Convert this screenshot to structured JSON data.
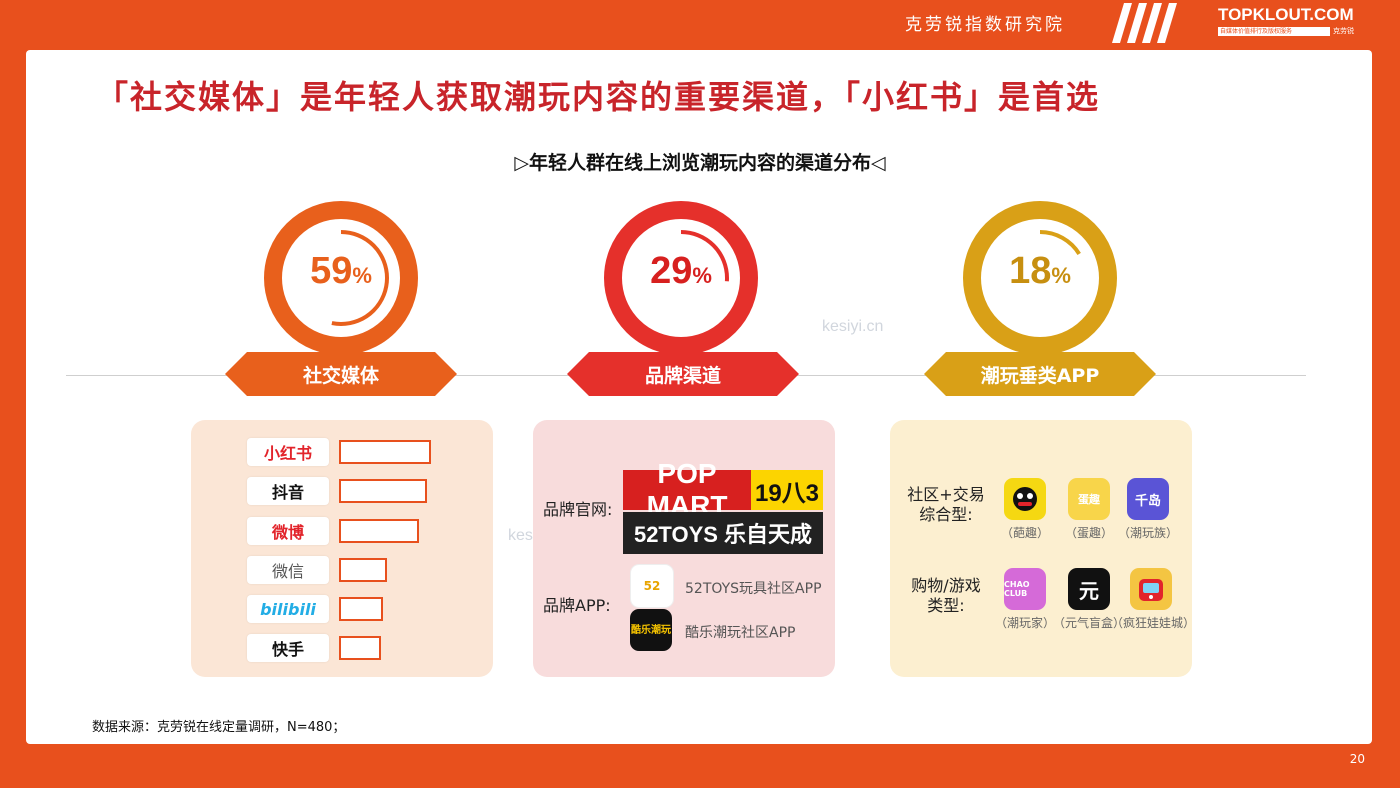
{
  "header": {
    "institute": "克劳锐指数研究院",
    "brand": "TOPKLOUT.COM",
    "brand_tagline": "自媒体价值排行及版权服务",
    "brand_cn": "克劳锐"
  },
  "headline": "「社交媒体」是年轻人获取潮玩内容的重要渠道，「小红书」是首选",
  "subtitle": "▷年轻人群在线上浏览潮玩内容的渠道分布◁",
  "channels": [
    {
      "value": "59",
      "unit": "%",
      "label": "社交媒体",
      "color": "#e8601c",
      "fraction": 0.59
    },
    {
      "value": "29",
      "unit": "%",
      "label": "品牌渠道",
      "color": "#e5302b",
      "fraction": 0.29
    },
    {
      "value": "18",
      "unit": "%",
      "label": "潮玩垂类APP",
      "color": "#d9a017",
      "fraction": 0.18
    }
  ],
  "social_platforms": [
    {
      "name": "小红书",
      "color": "#e2242b",
      "relative": 1.0
    },
    {
      "name": "抖音",
      "color": "#111111",
      "relative": 0.96
    },
    {
      "name": "微博",
      "color": "#e2242b",
      "relative": 0.87
    },
    {
      "name": "微信",
      "color": "#555555",
      "relative": 0.52
    },
    {
      "name": "bilibili",
      "color": "#23ade5",
      "relative": 0.48
    },
    {
      "name": "快手",
      "color": "#111111",
      "relative": 0.46
    }
  ],
  "brand_channels": {
    "official_label": "品牌官网:",
    "popmart": "POP MART",
    "popmart_year": "19八3",
    "toys": "52TOYS 乐自天成",
    "app_label": "品牌APP:",
    "apps": [
      {
        "name": "52TOYS玩具社区APP",
        "icon_text": "52"
      },
      {
        "name": "酷乐潮玩社区APP",
        "icon_text": "酷乐潮玩"
      }
    ]
  },
  "vertical_apps": {
    "community_label": "社区+交易综合型:",
    "shopping_label": "购物/游戏类型:",
    "community_apps": [
      {
        "caption": "（葩趣）",
        "icon_text": "",
        "bg": "#f5d812"
      },
      {
        "caption": "（蛋趣）",
        "icon_text": "蛋趣",
        "bg": "#f8d54a"
      },
      {
        "caption": "（潮玩族）",
        "icon_text": "千岛",
        "bg": "#5a54d6"
      }
    ],
    "shopping_apps": [
      {
        "caption": "（潮玩家）",
        "icon_text": "CHAO CLUB",
        "bg": "#d56ad8"
      },
      {
        "caption": "（元气盲盒）",
        "icon_text": "元",
        "bg": "#111111"
      },
      {
        "caption": "（疯狂娃娃城）",
        "icon_text": "",
        "bg": "#f4c542"
      }
    ]
  },
  "source": "数据来源：克劳锐在线定量调研，N=480；",
  "page_number": "20",
  "watermark": "kesiyi.cn"
}
